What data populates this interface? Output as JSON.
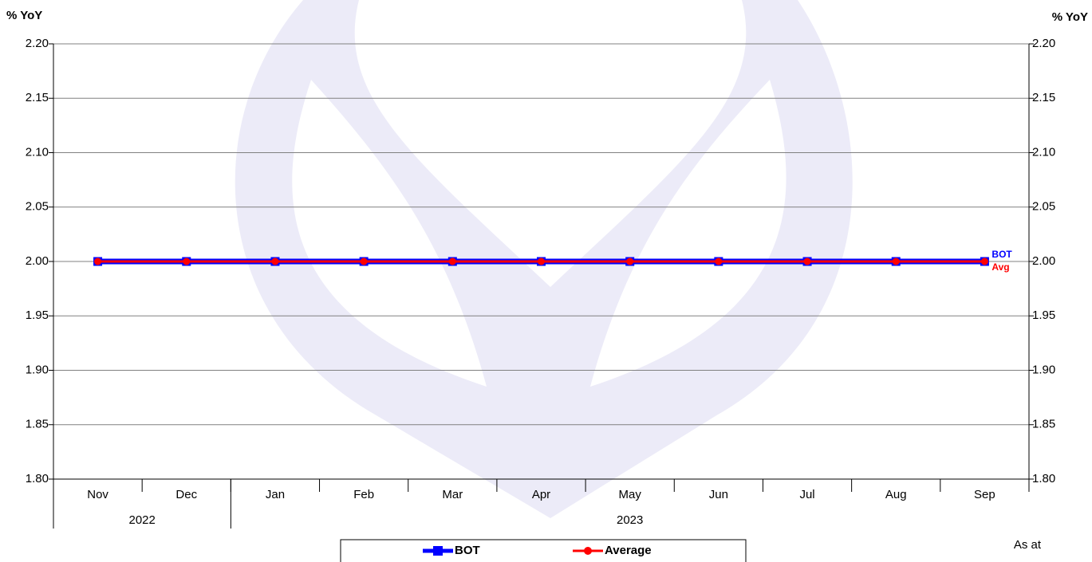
{
  "chart_data": {
    "type": "line",
    "ylabel": "% YoY",
    "y2label": "% YoY",
    "categories": [
      "Nov",
      "Dec",
      "Jan",
      "Feb",
      "Mar",
      "Apr",
      "May",
      "Jun",
      "Jul",
      "Aug",
      "Sep"
    ],
    "year_groups": [
      {
        "label": "2022",
        "count": 2
      },
      {
        "label": "2023",
        "count": 9
      }
    ],
    "series": [
      {
        "name": "BOT",
        "end_label": "BOT",
        "color": "#0000ff",
        "marker": "square",
        "values": [
          2,
          2,
          2,
          2,
          2,
          2,
          2,
          2,
          2,
          2,
          2
        ]
      },
      {
        "name": "Average",
        "end_label": "Avg",
        "color": "#ff0000",
        "marker": "circle",
        "values": [
          2,
          2,
          2,
          2,
          2,
          2,
          2,
          2,
          2,
          2,
          2
        ]
      }
    ],
    "ylim": [
      1.8,
      2.2
    ],
    "yticks": [
      {
        "value": 1.8,
        "label": "1.80"
      },
      1.85,
      {
        "value": 1.9,
        "label": "1.90"
      },
      1.95,
      {
        "value": 2.0,
        "label": "2.00"
      },
      2.05,
      {
        "value": 2.1,
        "label": "2.10"
      },
      2.15,
      {
        "value": 2.2,
        "label": "2.20"
      }
    ],
    "y2lim": [
      1.8,
      2.2
    ],
    "y2ticks": [
      {
        "value": 1.8,
        "label": "1.80"
      },
      1.85,
      {
        "value": 1.9,
        "label": "1.90"
      },
      1.95,
      {
        "value": 2.0,
        "label": "2.00"
      },
      2.05,
      {
        "value": 2.1,
        "label": "2.10"
      },
      2.15,
      {
        "value": 2.2,
        "label": "2.20"
      }
    ],
    "grid": true,
    "footnote": "As at"
  }
}
